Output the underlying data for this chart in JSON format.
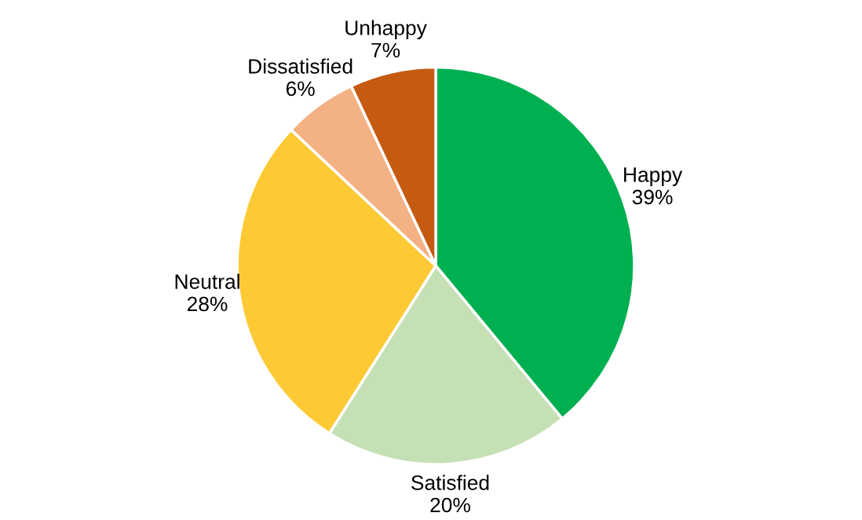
{
  "chart_data": {
    "type": "pie",
    "categories": [
      "Happy",
      "Satisfied",
      "Neutral",
      "Dissatisfied",
      "Unhappy"
    ],
    "values": [
      39,
      20,
      28,
      6,
      7
    ],
    "value_labels": [
      "39%",
      "20%",
      "28%",
      "6%",
      "7%"
    ],
    "colors": [
      "#00b050",
      "#c5e0b4",
      "#fdca35",
      "#f4b183",
      "#c55a11"
    ],
    "legend": false
  }
}
